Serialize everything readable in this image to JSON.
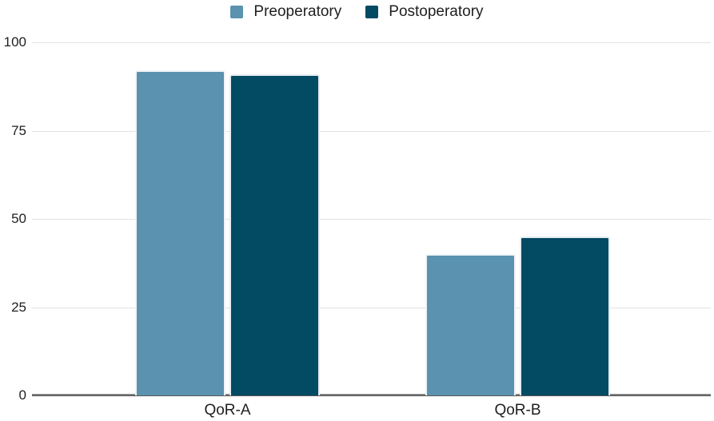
{
  "chart_data": {
    "type": "bar",
    "title": "",
    "xlabel": "",
    "ylabel": "",
    "categories": [
      "QoR-A",
      "QoR-B"
    ],
    "series": [
      {
        "name": "Preoperatory",
        "color": "#5A92AF",
        "values": [
          92,
          40
        ]
      },
      {
        "name": "Postoperatory",
        "color": "#034A63",
        "values": [
          91,
          45
        ]
      }
    ],
    "ylim": [
      0,
      100
    ],
    "yticks": [
      0,
      25,
      50,
      75,
      100
    ],
    "grid": true,
    "legend_position": "top"
  },
  "colors": {
    "background": "#ffffff",
    "gridline": "#e2e2e2",
    "axis_line": "#5f5f5f",
    "text": "#1f1f1f"
  }
}
